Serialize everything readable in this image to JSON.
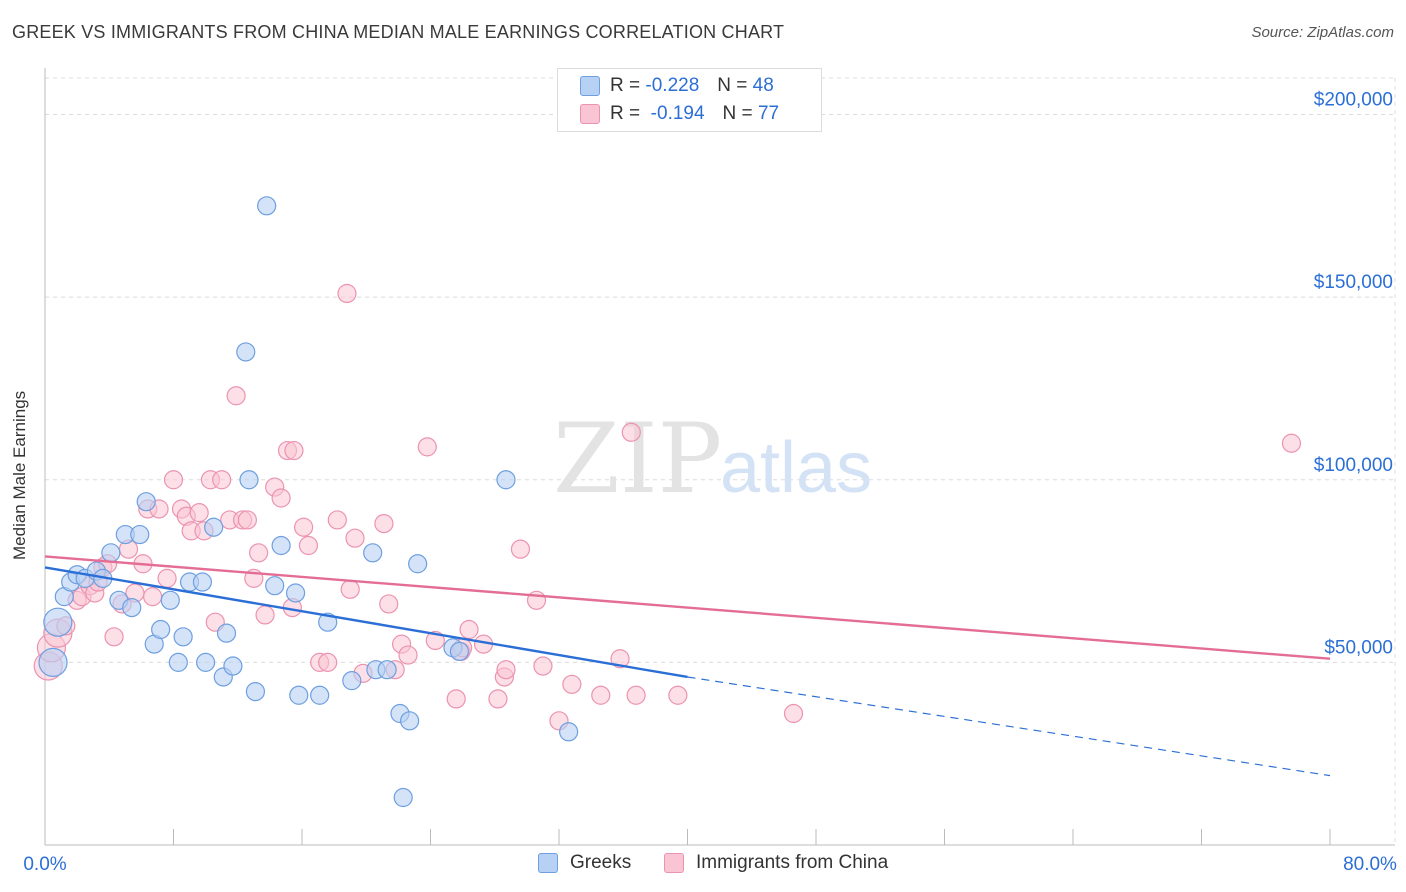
{
  "header": {
    "title": "GREEK VS IMMIGRANTS FROM CHINA MEDIAN MALE EARNINGS CORRELATION CHART",
    "source": "Source: ZipAtlas.com"
  },
  "watermark": {
    "zip": "ZIP",
    "atlas": "atlas"
  },
  "legend": {
    "rows": [
      {
        "r_label": "R =",
        "r_value": "-0.228",
        "n_label": "N =",
        "n_value": "48"
      },
      {
        "r_label": "R =",
        "r_value": "-0.194",
        "n_label": "N =",
        "n_value": "77"
      }
    ]
  },
  "colors": {
    "greeks_fill": "#b7d1f4",
    "greeks_stroke": "#6e9fe0",
    "greeks_line": "#2b6fd6",
    "china_fill": "#f9c5d4",
    "china_stroke": "#ec93b0",
    "china_line": "#e46d95",
    "grid": "#dcdcdc",
    "tick_text": "#2b6fd6"
  },
  "chart_data": {
    "type": "scatter",
    "title": "GREEK VS IMMIGRANTS FROM CHINA MEDIAN MALE EARNINGS CORRELATION CHART",
    "xlabel": "",
    "ylabel": "Median Male Earnings",
    "xlim": [
      0,
      80
    ],
    "ylim": [
      0,
      210000
    ],
    "x_tick_labels": [
      "0.0%",
      "80.0%"
    ],
    "y_ticks": [
      {
        "value": 50000,
        "label": "$50,000"
      },
      {
        "value": 100000,
        "label": "$100,000"
      },
      {
        "value": 150000,
        "label": "$150,000"
      },
      {
        "value": 200000,
        "label": "$200,000"
      }
    ],
    "grid": true,
    "legend_position": "bottom",
    "series": [
      {
        "name": "Greeks",
        "r": -0.228,
        "n": 48,
        "trend": {
          "x0": 0,
          "y0": 76000,
          "x1": 40,
          "y1": 46000,
          "dash_to_x": 80,
          "dash_to_y": 19000
        },
        "points": [
          [
            0.5,
            50000
          ],
          [
            0.8,
            61000
          ],
          [
            1.2,
            68000
          ],
          [
            1.6,
            72000
          ],
          [
            2.0,
            74000
          ],
          [
            2.5,
            73000
          ],
          [
            3.2,
            75000
          ],
          [
            3.6,
            73000
          ],
          [
            4.1,
            80000
          ],
          [
            4.6,
            67000
          ],
          [
            5.0,
            85000
          ],
          [
            5.4,
            65000
          ],
          [
            5.9,
            85000
          ],
          [
            6.3,
            94000
          ],
          [
            6.8,
            55000
          ],
          [
            7.2,
            59000
          ],
          [
            7.8,
            67000
          ],
          [
            8.3,
            50000
          ],
          [
            8.6,
            57000
          ],
          [
            9.0,
            72000
          ],
          [
            9.8,
            72000
          ],
          [
            10.0,
            50000
          ],
          [
            10.5,
            87000
          ],
          [
            11.1,
            46000
          ],
          [
            11.3,
            58000
          ],
          [
            11.7,
            49000
          ],
          [
            12.7,
            100000
          ],
          [
            13.1,
            42000
          ],
          [
            13.8,
            175000
          ],
          [
            12.5,
            135000
          ],
          [
            14.7,
            82000
          ],
          [
            14.3,
            71000
          ],
          [
            15.6,
            69000
          ],
          [
            15.8,
            41000
          ],
          [
            17.1,
            41000
          ],
          [
            17.6,
            61000
          ],
          [
            19.1,
            45000
          ],
          [
            20.4,
            80000
          ],
          [
            20.6,
            48000
          ],
          [
            21.3,
            48000
          ],
          [
            22.1,
            36000
          ],
          [
            22.3,
            13000
          ],
          [
            22.7,
            34000
          ],
          [
            23.2,
            77000
          ],
          [
            25.4,
            54000
          ],
          [
            25.8,
            53000
          ],
          [
            28.7,
            100000
          ],
          [
            32.6,
            31000
          ]
        ]
      },
      {
        "name": "Immigrants from China",
        "r": -0.194,
        "n": 77,
        "trend": {
          "x0": 0,
          "y0": 79000,
          "x1": 80,
          "y1": 51000
        },
        "points": [
          [
            0.2,
            49000
          ],
          [
            0.4,
            54000
          ],
          [
            0.8,
            58000
          ],
          [
            1.3,
            60000
          ],
          [
            2.0,
            67000
          ],
          [
            2.3,
            68000
          ],
          [
            2.8,
            71000
          ],
          [
            3.1,
            69000
          ],
          [
            3.3,
            72000
          ],
          [
            3.6,
            76000
          ],
          [
            3.9,
            77000
          ],
          [
            4.3,
            57000
          ],
          [
            4.8,
            66000
          ],
          [
            5.2,
            81000
          ],
          [
            5.6,
            69000
          ],
          [
            6.1,
            77000
          ],
          [
            6.4,
            92000
          ],
          [
            6.7,
            68000
          ],
          [
            7.1,
            92000
          ],
          [
            7.6,
            73000
          ],
          [
            8.0,
            100000
          ],
          [
            8.5,
            92000
          ],
          [
            8.8,
            90000
          ],
          [
            9.1,
            86000
          ],
          [
            9.6,
            91000
          ],
          [
            9.9,
            86000
          ],
          [
            10.3,
            100000
          ],
          [
            10.6,
            61000
          ],
          [
            11.0,
            100000
          ],
          [
            11.5,
            89000
          ],
          [
            11.9,
            123000
          ],
          [
            12.3,
            89000
          ],
          [
            12.6,
            89000
          ],
          [
            13.0,
            73000
          ],
          [
            13.3,
            80000
          ],
          [
            13.7,
            63000
          ],
          [
            14.3,
            98000
          ],
          [
            14.7,
            95000
          ],
          [
            15.1,
            108000
          ],
          [
            15.5,
            108000
          ],
          [
            15.4,
            65000
          ],
          [
            16.1,
            87000
          ],
          [
            16.4,
            82000
          ],
          [
            17.1,
            50000
          ],
          [
            17.6,
            50000
          ],
          [
            18.2,
            89000
          ],
          [
            18.8,
            151000
          ],
          [
            19.0,
            70000
          ],
          [
            19.3,
            84000
          ],
          [
            19.8,
            47000
          ],
          [
            21.1,
            88000
          ],
          [
            21.4,
            66000
          ],
          [
            21.8,
            48000
          ],
          [
            22.2,
            55000
          ],
          [
            22.6,
            52000
          ],
          [
            23.8,
            109000
          ],
          [
            24.3,
            56000
          ],
          [
            25.6,
            40000
          ],
          [
            25.9,
            53000
          ],
          [
            26.4,
            59000
          ],
          [
            27.3,
            55000
          ],
          [
            28.2,
            40000
          ],
          [
            28.6,
            46000
          ],
          [
            28.7,
            48000
          ],
          [
            29.6,
            81000
          ],
          [
            30.6,
            67000
          ],
          [
            31.0,
            49000
          ],
          [
            32.0,
            34000
          ],
          [
            32.8,
            44000
          ],
          [
            34.6,
            41000
          ],
          [
            35.8,
            51000
          ],
          [
            36.5,
            113000
          ],
          [
            36.8,
            41000
          ],
          [
            39.4,
            41000
          ],
          [
            46.6,
            36000
          ],
          [
            77.6,
            110000
          ],
          [
            26.0,
            54000
          ]
        ]
      }
    ]
  }
}
